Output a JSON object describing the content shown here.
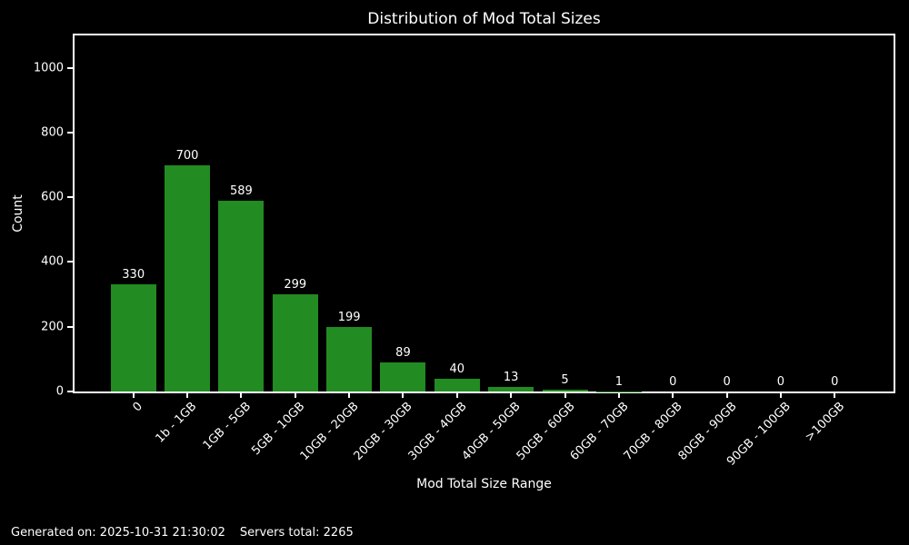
{
  "title": "Distribution of Mod Total Sizes",
  "footer": {
    "generated": "Generated on: 2025-10-31 21:30:02",
    "servers_total": "Servers total: 2265"
  },
  "chart_data": {
    "type": "bar",
    "title": "Distribution of Mod Total Sizes",
    "xlabel": "Mod Total Size Range",
    "ylabel": "Count",
    "categories": [
      "0",
      "1b - 1GB",
      "1GB - 5GB",
      "5GB - 10GB",
      "10GB - 20GB",
      "20GB - 30GB",
      "30GB - 40GB",
      "40GB - 50GB",
      "50GB - 60GB",
      "60GB - 70GB",
      "70GB - 80GB",
      "80GB - 90GB",
      "90GB - 100GB",
      ">100GB"
    ],
    "values": [
      330,
      700,
      589,
      299,
      199,
      89,
      40,
      13,
      5,
      1,
      0,
      0,
      0,
      0
    ],
    "yticks": [
      0,
      200,
      400,
      600,
      800,
      1000
    ],
    "ylim": [
      0,
      1100
    ],
    "xtick_rotation": 45,
    "grid": false,
    "legend": null,
    "bar_color": "#228B22",
    "background_color": "#000000",
    "text_color": "#ffffff",
    "spine_color": "#ffffff"
  }
}
